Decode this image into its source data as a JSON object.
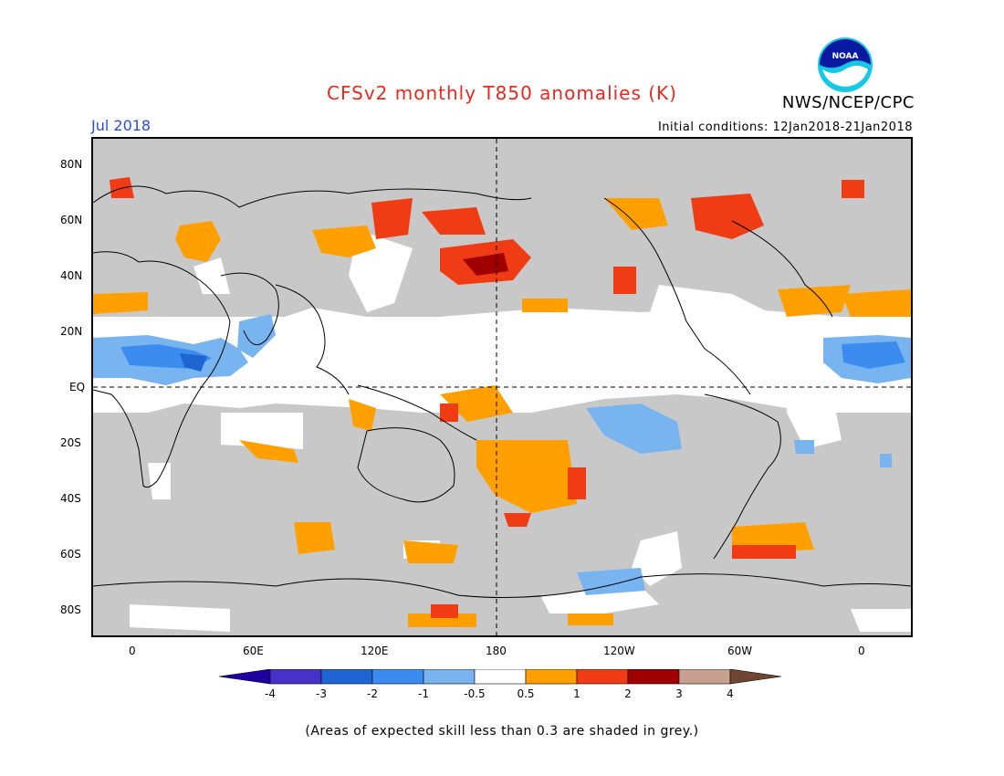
{
  "header": {
    "title": "CFSv2 monthly T850 anomalies (K)",
    "month": "Jul 2018",
    "org": "NWS/NCEP/CPC",
    "logo_text": "NOAA",
    "init_conditions": "Initial conditions: 12Jan2018-21Jan2018"
  },
  "map": {
    "lat_ticks": [
      "80N",
      "60N",
      "40N",
      "20N",
      "EQ",
      "20S",
      "40S",
      "60S",
      "80S"
    ],
    "lon_ticks": [
      "0",
      "60E",
      "120E",
      "180",
      "120W",
      "60W",
      "0"
    ],
    "colors": {
      "grey_low_skill": "#c8c8c8",
      "neutral": "#ffffff",
      "warm_0_5_1": "#ffa000",
      "warm_1_2": "#f03c14",
      "warm_2_3": "#a00000",
      "cool_n0_5_n1": "#78b4f0",
      "cool_n1_n2": "#3c8cf0",
      "cool_n2_n3": "#1e64d2",
      "coast": "#000000"
    }
  },
  "colorbar": {
    "labels": [
      "-4",
      "-3",
      "-2",
      "-1",
      "-0.5",
      "0.5",
      "1",
      "2",
      "3",
      "4"
    ],
    "colors": [
      "#1e00a0",
      "#4632c8",
      "#1e64d2",
      "#3c8cf0",
      "#78b4f0",
      "#ffffff",
      "#ffa000",
      "#f03c14",
      "#a00000",
      "#c8a090",
      "#6e4632"
    ]
  },
  "footnote": "(Areas of expected skill less than 0.3 are shaded in grey.)"
}
